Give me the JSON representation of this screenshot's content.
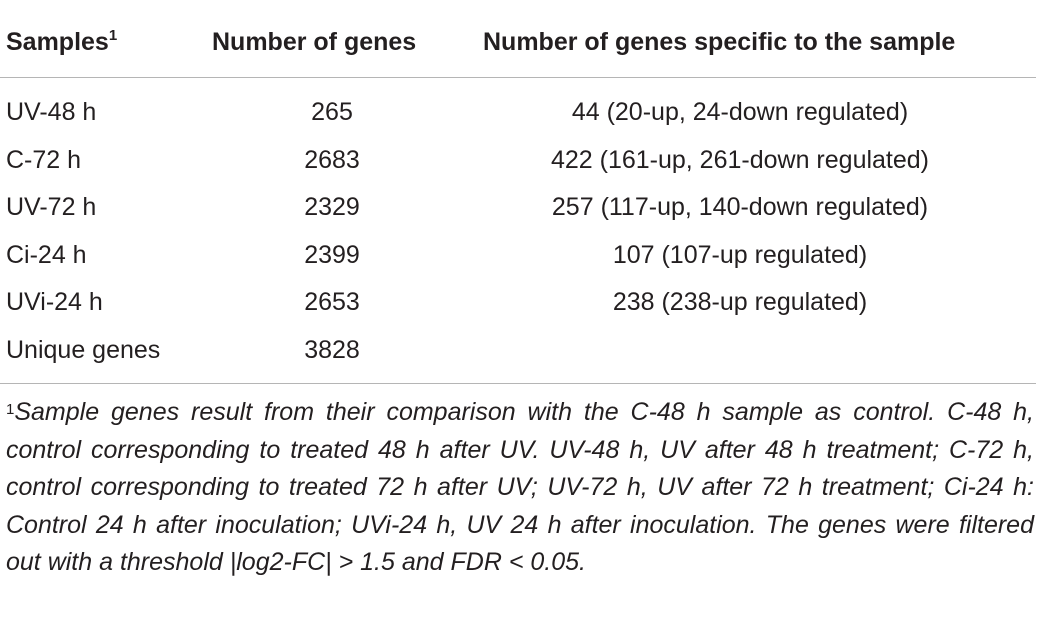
{
  "table": {
    "headers": {
      "samples": "Samples",
      "samples_note": "1",
      "number_of_genes": "Number of genes",
      "specific": "Number of genes specific to the sample"
    },
    "rows": [
      {
        "sample": "UV-48 h",
        "genes": "265",
        "specific": "44 (20-up, 24-down regulated)"
      },
      {
        "sample": "C-72 h",
        "genes": "2683",
        "specific": "422 (161-up, 261-down regulated)"
      },
      {
        "sample": "UV-72 h",
        "genes": "2329",
        "specific": "257 (117-up, 140-down regulated)"
      },
      {
        "sample": "Ci-24 h",
        "genes": "2399",
        "specific": "107 (107-up regulated)"
      },
      {
        "sample": "UVi-24 h",
        "genes": "2653",
        "specific": "238 (238-up regulated)"
      },
      {
        "sample": "Unique genes",
        "genes": "3828",
        "specific": ""
      }
    ]
  },
  "footnote": {
    "marker": "1",
    "text": "Sample genes result from their comparison with the C-48 h sample as control. C-48 h, control corresponding to treated 48 h after UV. UV-48 h, UV after 48 h treatment; C-72 h, control corresponding to treated 72 h after UV; UV-72 h, UV after 72 h treatment; Ci-24 h: Control 24 h after inoculation; UVi-24 h, UV 24 h after inoculation. The genes were filtered out with a threshold |log2-FC| > 1.5 and FDR < 0.05."
  }
}
